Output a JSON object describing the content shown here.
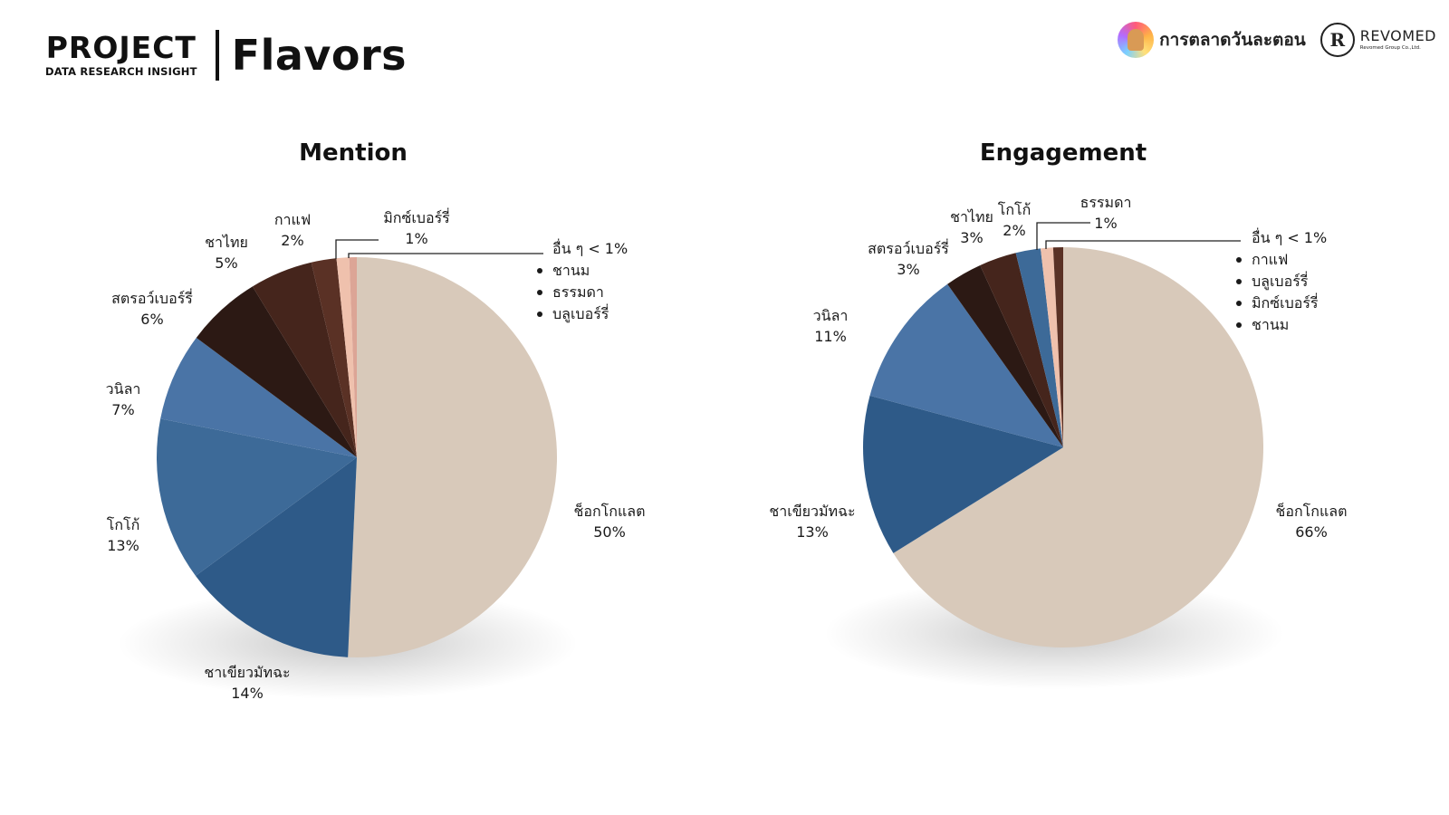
{
  "header": {
    "brand_title": "PROJECT",
    "brand_subtitle": "DATA RESEARCH INSIGHT",
    "page_title": "Flavors"
  },
  "logos": {
    "logo1_text": "การตลาดวันละตอน",
    "logo2_mark": "R",
    "logo2_name": "REVOMED",
    "logo2_sub": "Revomed Group Co.,Ltd."
  },
  "colors": {
    "chocolate": "#d8c9ba",
    "matcha": "#2e5a88",
    "cocoa": "#3d6a98",
    "vanilla": "#4a74a6",
    "strawberry": "#2c1914",
    "thai_tea": "#45251c",
    "coffee": "#5a3125",
    "mixed_berry": "#efc1ad",
    "others": "#dca596"
  },
  "chart_data": [
    {
      "type": "pie",
      "title": "Mention",
      "slices": [
        {
          "label": "ช็อกโกแลต",
          "value": 50,
          "value_label": "50%",
          "color": "#d8c9ba"
        },
        {
          "label": "ชาเขียวมัทฉะ",
          "value": 14,
          "value_label": "14%",
          "color": "#2e5a88"
        },
        {
          "label": "โกโก้",
          "value": 13,
          "value_label": "13%",
          "color": "#3d6a98"
        },
        {
          "label": "วนิลา",
          "value": 7,
          "value_label": "7%",
          "color": "#4a74a6"
        },
        {
          "label": "สตรอว์เบอร์รี่",
          "value": 6,
          "value_label": "6%",
          "color": "#2c1914"
        },
        {
          "label": "ชาไทย",
          "value": 5,
          "value_label": "5%",
          "color": "#45251c"
        },
        {
          "label": "กาแฟ",
          "value": 2,
          "value_label": "2%",
          "color": "#5a3125"
        },
        {
          "label": "มิกซ์เบอร์รี่",
          "value": 1,
          "value_label": "1%",
          "color": "#efc1ad"
        },
        {
          "label": "อื่น ๆ < 1%",
          "value": 0.6,
          "value_label": "",
          "color": "#dca596"
        }
      ],
      "others_list": [
        "ชานม",
        "ธรรมดา",
        "บลูเบอร์รี่"
      ]
    },
    {
      "type": "pie",
      "title": "Engagement",
      "slices": [
        {
          "label": "ช็อกโกแลต",
          "value": 66,
          "value_label": "66%",
          "color": "#d8c9ba"
        },
        {
          "label": "ชาเขียวมัทฉะ",
          "value": 13,
          "value_label": "13%",
          "color": "#2e5a88"
        },
        {
          "label": "วนิลา",
          "value": 11,
          "value_label": "11%",
          "color": "#4a74a6"
        },
        {
          "label": "สตรอว์เบอร์รี่",
          "value": 3,
          "value_label": "3%",
          "color": "#2c1914"
        },
        {
          "label": "ชาไทย",
          "value": 3,
          "value_label": "3%",
          "color": "#45251c"
        },
        {
          "label": "โกโก้",
          "value": 2,
          "value_label": "2%",
          "color": "#3d6a98"
        },
        {
          "label": "ธรรมดา",
          "value": 1,
          "value_label": "1%",
          "color": "#efc1ad"
        },
        {
          "label": "อื่น ๆ < 1%",
          "value": 0.8,
          "value_label": "",
          "color": "#5a3125"
        }
      ],
      "others_list": [
        "กาแฟ",
        "บลูเบอร์รี่",
        "มิกซ์เบอร์รี่",
        "ชานม"
      ]
    }
  ]
}
